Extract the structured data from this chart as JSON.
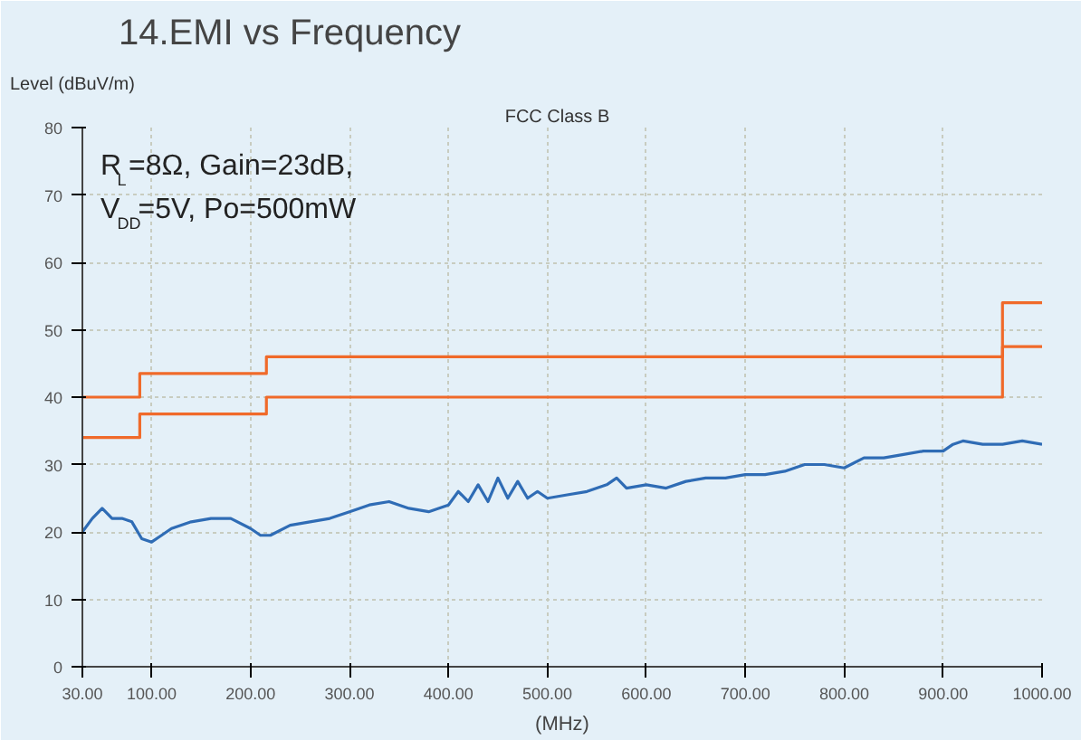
{
  "chart_data": {
    "type": "line",
    "title": "14.EMI vs Frequency",
    "subtitle": "FCC   Class B",
    "xlabel": "(MHz)",
    "ylabel": "Level (dBuV/m)",
    "annotations": [
      "R$_{L}$=8Ω, Gain=23dB,",
      "V$_{DD}$=5V, Po=500mW"
    ],
    "xlim": [
      30,
      1000
    ],
    "ylim": [
      0,
      80
    ],
    "xticks": [
      {
        "value": 30,
        "label": "30.00"
      },
      {
        "value": 100,
        "label": "100.00"
      },
      {
        "value": 200,
        "label": "200.00"
      },
      {
        "value": 300,
        "label": "300.00"
      },
      {
        "value": 400,
        "label": "400.00"
      },
      {
        "value": 500,
        "label": "500.00"
      },
      {
        "value": 600,
        "label": "600.00"
      },
      {
        "value": 700,
        "label": "700.00"
      },
      {
        "value": 800,
        "label": "800.00"
      },
      {
        "value": 900,
        "label": "900.00"
      },
      {
        "value": 1000,
        "label": "1000.00"
      }
    ],
    "yticks": [
      0,
      10,
      20,
      30,
      40,
      50,
      60,
      70,
      80
    ],
    "grid": true,
    "marker": "none",
    "line_style": "solid",
    "series": [
      {
        "color": "#2f6cb5",
        "x": [
          30,
          40,
          50,
          60,
          70,
          80,
          90,
          100,
          110,
          120,
          140,
          160,
          180,
          200,
          210,
          220,
          240,
          260,
          280,
          300,
          320,
          340,
          360,
          380,
          400,
          410,
          420,
          430,
          440,
          450,
          460,
          470,
          480,
          490,
          500,
          520,
          540,
          560,
          570,
          580,
          600,
          620,
          640,
          660,
          680,
          700,
          720,
          740,
          760,
          780,
          800,
          820,
          840,
          860,
          880,
          900,
          910,
          920,
          940,
          960,
          980,
          1000
        ],
        "values": [
          20,
          22,
          23.5,
          22,
          22,
          21.5,
          19,
          18.5,
          19.5,
          20.5,
          21.5,
          22,
          22,
          20.5,
          19.5,
          19.5,
          21,
          21.5,
          22,
          23,
          24,
          24.5,
          23.5,
          23,
          24,
          26,
          24.5,
          27,
          24.5,
          28,
          25,
          27.5,
          25,
          26,
          25,
          25.5,
          26,
          27,
          28,
          26.5,
          27,
          26.5,
          27.5,
          28,
          28,
          28.5,
          28.5,
          29,
          30,
          30,
          29.5,
          31,
          31,
          31.5,
          32,
          32,
          33,
          33.5,
          33,
          33,
          33.5,
          33
        ]
      },
      {
        "color": "#f06a2a",
        "x": [
          30,
          88,
          88,
          216,
          216,
          960,
          960,
          1000
        ],
        "values": [
          40,
          40,
          43.5,
          43.5,
          46,
          46,
          54,
          54
        ]
      },
      {
        "color": "#f06a2a",
        "x": [
          30,
          88,
          88,
          216,
          216,
          960,
          960,
          1000
        ],
        "values": [
          34,
          34,
          37.5,
          37.5,
          40,
          40,
          47.5,
          47.5
        ]
      }
    ]
  }
}
